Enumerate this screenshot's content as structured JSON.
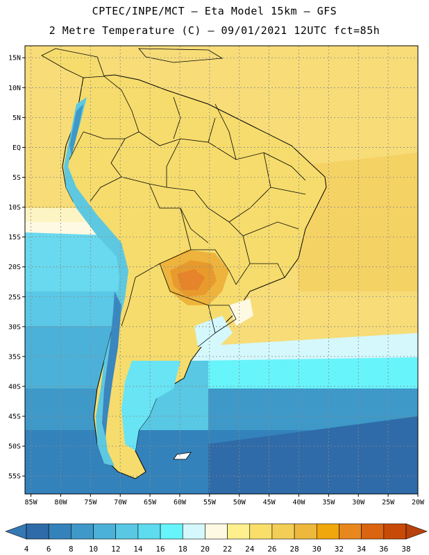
{
  "header": {
    "line1": "CPTEC/INPE/MCT –  Eta Model 15km – GFS",
    "line2": "2 Metre Temperature (C) – 09/01/2021 12UTC fct=85h"
  },
  "map": {
    "lat_range": [
      -58,
      17
    ],
    "lon_range": [
      -86,
      -20
    ],
    "lat_ticks": [
      "15N",
      "10N",
      "5N",
      "EQ",
      "5S",
      "10S",
      "15S",
      "20S",
      "25S",
      "30S",
      "35S",
      "40S",
      "45S",
      "50S",
      "55S"
    ],
    "lon_ticks": [
      "85W",
      "80W",
      "75W",
      "70W",
      "65W",
      "60W",
      "55W",
      "50W",
      "45W",
      "40W",
      "35W",
      "30W",
      "25W",
      "20W"
    ],
    "grid": true
  },
  "colorbar": {
    "labels": [
      "4",
      "6",
      "8",
      "10",
      "12",
      "14",
      "16",
      "18",
      "20",
      "22",
      "24",
      "26",
      "28",
      "30",
      "32",
      "34",
      "36",
      "38"
    ],
    "colors": [
      "#2f6ba8",
      "#3382bb",
      "#3e99c8",
      "#4cb1d8",
      "#58c8e4",
      "#5edbee",
      "#68f4fb",
      "#d4f8fc",
      "#fef9e2",
      "#fdf08d",
      "#f9df6a",
      "#f3ce57",
      "#edb83c",
      "#f0a70c",
      "#e8871d",
      "#da6410",
      "#c84a08"
    ],
    "arrow_left": "#3478b4",
    "arrow_right": "#b8420c"
  }
}
